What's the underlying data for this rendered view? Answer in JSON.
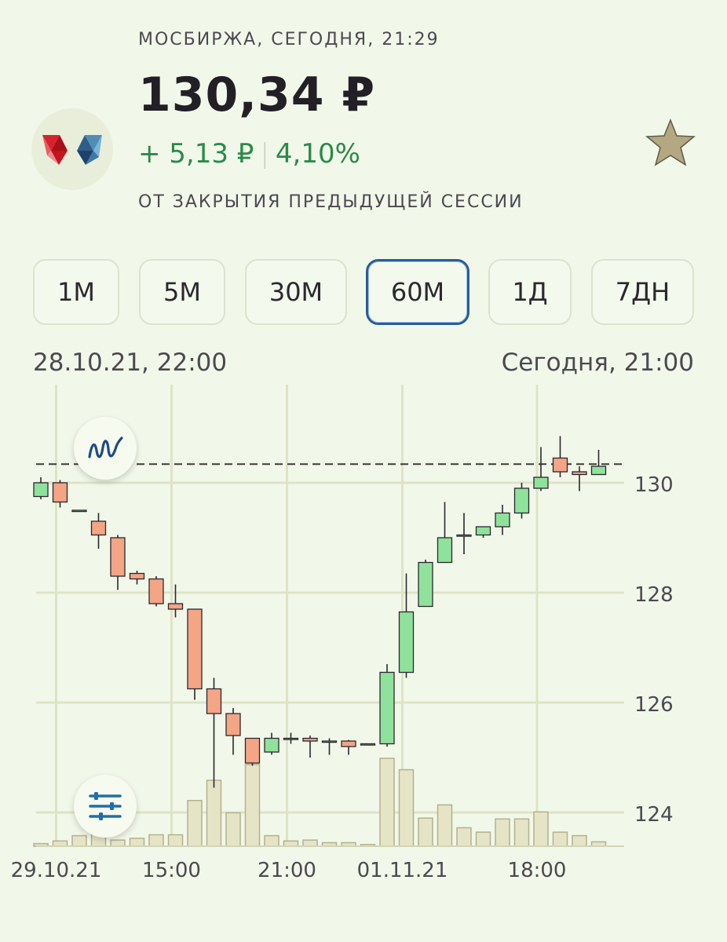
{
  "header": {
    "exchange_line": "МОСБИРЖА, СЕГОДНЯ, 21:29",
    "price": "130,34 ₽",
    "change_abs": "+ 5,13 ₽",
    "change_sep": "|",
    "change_pct": "4,10%",
    "subtitle": "ОТ ЗАКРЫТИЯ ПРЕДЫДУЩЕЙ СЕССИИ"
  },
  "icons": {
    "logo": "company-logo",
    "favorite": "star-icon",
    "chart_type": "line-chart-icon",
    "settings": "sliders-icon"
  },
  "tabs": [
    {
      "label": "1М",
      "active": false
    },
    {
      "label": "5М",
      "active": false
    },
    {
      "label": "30М",
      "active": false
    },
    {
      "label": "60М",
      "active": true
    },
    {
      "label": "1Д",
      "active": false
    },
    {
      "label": "7ДН",
      "active": false
    }
  ],
  "range": {
    "start": "28.10.21, 22:00",
    "end": "Сегодня, 21:00"
  },
  "colors": {
    "background": "#f1f8e9",
    "up": "#8fe29b",
    "down": "#f3a586",
    "grid": "#dfe3c6",
    "accent_tab": "#2a5c9a",
    "change_green": "#2c8a49",
    "volume": "#e6e4c6"
  },
  "chart_data": {
    "type": "candlestick",
    "interval": "60М",
    "y_ticks": [
      130,
      128,
      126,
      124
    ],
    "ylim": [
      123.2,
      131.6
    ],
    "x_tick_labels": [
      {
        "label": "29.10.21",
        "index": 1
      },
      {
        "label": "15:00",
        "index": 7
      },
      {
        "label": "21:00",
        "index": 13
      },
      {
        "label": "01.11.21",
        "index": 19
      },
      {
        "label": "18:00",
        "index": 26
      }
    ],
    "reference_price": 130.34,
    "grid": true,
    "candles": [
      {
        "o": 129.75,
        "h": 130.1,
        "l": 129.7,
        "c": 130.0
      },
      {
        "o": 130.0,
        "h": 130.05,
        "l": 129.55,
        "c": 129.65
      },
      {
        "o": 129.5,
        "h": 129.5,
        "l": 129.5,
        "c": 129.5
      },
      {
        "o": 129.3,
        "h": 129.45,
        "l": 128.8,
        "c": 129.05
      },
      {
        "o": 129.0,
        "h": 129.05,
        "l": 128.05,
        "c": 128.3
      },
      {
        "o": 128.35,
        "h": 128.4,
        "l": 128.15,
        "c": 128.25
      },
      {
        "o": 128.25,
        "h": 128.3,
        "l": 127.75,
        "c": 127.8
      },
      {
        "o": 127.8,
        "h": 128.15,
        "l": 127.55,
        "c": 127.7
      },
      {
        "o": 127.7,
        "h": 127.7,
        "l": 126.05,
        "c": 126.25
      },
      {
        "o": 126.25,
        "h": 126.45,
        "l": 124.45,
        "c": 125.8
      },
      {
        "o": 125.8,
        "h": 125.9,
        "l": 125.05,
        "c": 125.4
      },
      {
        "o": 125.35,
        "h": 125.35,
        "l": 124.85,
        "c": 124.9
      },
      {
        "o": 125.1,
        "h": 125.45,
        "l": 125.05,
        "c": 125.35
      },
      {
        "o": 125.35,
        "h": 125.45,
        "l": 125.25,
        "c": 125.35
      },
      {
        "o": 125.35,
        "h": 125.4,
        "l": 125.0,
        "c": 125.3
      },
      {
        "o": 125.3,
        "h": 125.35,
        "l": 125.05,
        "c": 125.3
      },
      {
        "o": 125.3,
        "h": 125.32,
        "l": 125.05,
        "c": 125.2
      },
      {
        "o": 125.25,
        "h": 125.25,
        "l": 125.25,
        "c": 125.25
      },
      {
        "o": 125.25,
        "h": 126.7,
        "l": 125.2,
        "c": 126.55
      },
      {
        "o": 126.55,
        "h": 128.35,
        "l": 126.45,
        "c": 127.65
      },
      {
        "o": 127.75,
        "h": 128.6,
        "l": 127.75,
        "c": 128.55
      },
      {
        "o": 128.55,
        "h": 129.65,
        "l": 128.55,
        "c": 129.0
      },
      {
        "o": 129.05,
        "h": 129.45,
        "l": 128.7,
        "c": 129.05
      },
      {
        "o": 129.05,
        "h": 129.2,
        "l": 129.0,
        "c": 129.2
      },
      {
        "o": 129.2,
        "h": 129.6,
        "l": 129.05,
        "c": 129.45
      },
      {
        "o": 129.45,
        "h": 130.0,
        "l": 129.35,
        "c": 129.9
      },
      {
        "o": 129.9,
        "h": 130.65,
        "l": 129.85,
        "c": 130.1
      },
      {
        "o": 130.45,
        "h": 130.85,
        "l": 130.1,
        "c": 130.2
      },
      {
        "o": 130.2,
        "h": 130.3,
        "l": 129.85,
        "c": 130.15
      },
      {
        "o": 130.15,
        "h": 130.6,
        "l": 130.15,
        "c": 130.3
      }
    ],
    "volumes": [
      0.03,
      0.06,
      0.12,
      0.15,
      0.07,
      0.09,
      0.13,
      0.13,
      0.52,
      0.75,
      0.38,
      0.93,
      0.12,
      0.06,
      0.07,
      0.04,
      0.04,
      0.02,
      1.0,
      0.87,
      0.32,
      0.47,
      0.21,
      0.16,
      0.31,
      0.31,
      0.39,
      0.16,
      0.12,
      0.05
    ]
  }
}
